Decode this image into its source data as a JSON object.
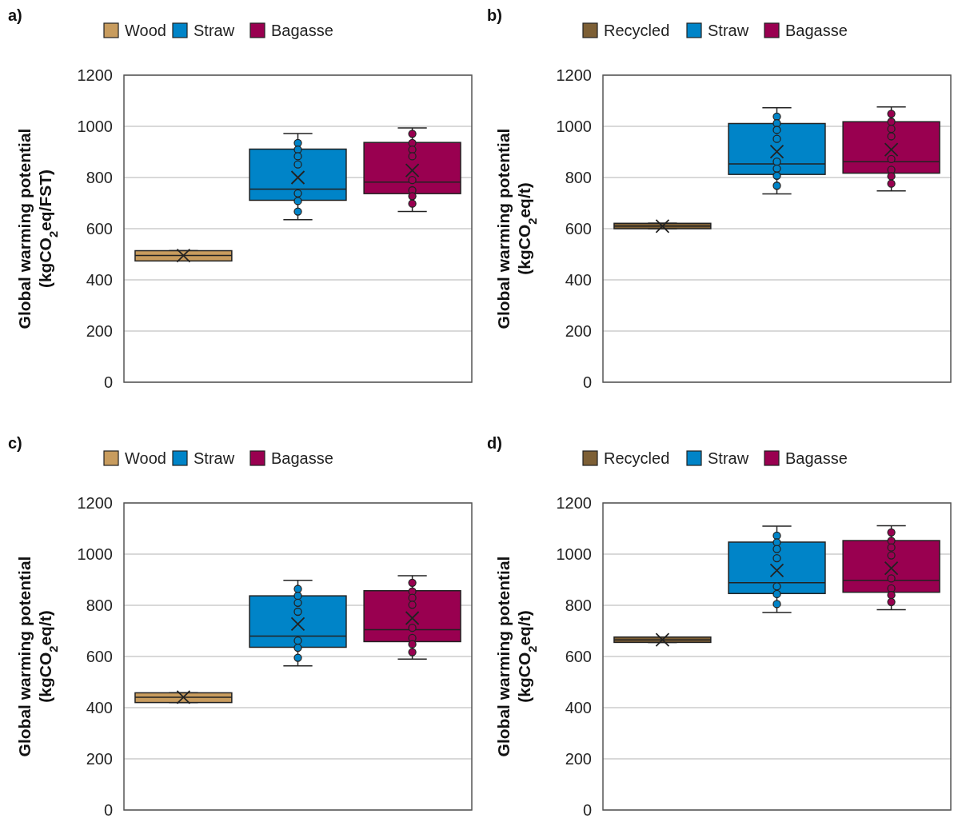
{
  "chart_data": [
    {
      "type": "box",
      "title": "a)",
      "ylabel": "Global warming potential\n(kgCO$_{2}$eq/FST)",
      "categories": [
        null,
        null,
        null
      ],
      "ylim": [
        0,
        1200
      ],
      "yticks": [
        0,
        200,
        400,
        600,
        800,
        1000,
        1200
      ],
      "grid": "y",
      "legend": "top",
      "tick_labels": "y",
      "series": [
        {
          "name": "Wood",
          "color": "#c89c5e",
          "boxes": [
            {
              "low": 474,
              "q1": 474,
              "median": 495,
              "q3": 514,
              "high": 514,
              "mean": 495
            },
            null,
            null
          ]
        },
        {
          "name": "Straw",
          "color": "#0084c8",
          "boxes": [
            null,
            {
              "low": 635,
              "q1": 711,
              "median": 755,
              "q3": 911,
              "high": 972,
              "mean": 800,
              "outliers": [
                935,
                909,
                883,
                851,
                738,
                708,
                667
              ]
            },
            null
          ]
        },
        {
          "name": "Bagasse",
          "color": "#990050",
          "boxes": [
            null,
            null,
            {
              "low": 667,
              "q1": 737,
              "median": 782,
              "q3": 937,
              "high": 994,
              "mean": 828,
              "outliers": [
                971,
                935,
                909,
                883,
                790,
                750,
                727,
                698
              ]
            }
          ]
        }
      ]
    },
    {
      "type": "box",
      "title": "b)",
      "ylabel": "Global warming potential\n(kgCO$_{2}$eq/t)",
      "categories": [
        null,
        null,
        null
      ],
      "ylim": [
        0,
        1200
      ],
      "yticks": [
        0,
        200,
        400,
        600,
        800,
        1000,
        1200
      ],
      "grid": "y",
      "legend": "top",
      "tick_labels": "y",
      "series": [
        {
          "name": "Recycled",
          "color": "#7d5f35",
          "boxes": [
            {
              "low": 600,
              "q1": 600,
              "median": 610,
              "q3": 621,
              "high": 621,
              "mean": 610
            },
            null,
            null
          ]
        },
        {
          "name": "Straw",
          "color": "#0084c8",
          "boxes": [
            null,
            {
              "low": 736,
              "q1": 812,
              "median": 853,
              "q3": 1011,
              "high": 1073,
              "mean": 901,
              "outliers": [
                1038,
                1012,
                986,
                951,
                862,
                835,
                807,
                768
              ]
            },
            null
          ]
        },
        {
          "name": "Bagasse",
          "color": "#990050",
          "boxes": [
            null,
            null,
            {
              "low": 748,
              "q1": 817,
              "median": 862,
              "q3": 1018,
              "high": 1076,
              "mean": 909,
              "outliers": [
                1049,
                1018,
                990,
                961,
                872,
                830,
                805,
                776
              ]
            }
          ]
        }
      ]
    },
    {
      "type": "box",
      "title": "c)",
      "ylabel": "Global warming potential\n(kgCO$_{2}$eq/t)",
      "categories": [
        null,
        null,
        null
      ],
      "ylim": [
        0,
        1200
      ],
      "yticks": [
        0,
        200,
        400,
        600,
        800,
        1000,
        1200
      ],
      "grid": "y",
      "legend": "top",
      "tick_labels": "y",
      "series": [
        {
          "name": "Wood",
          "color": "#c89c5e",
          "boxes": [
            {
              "low": 420,
              "q1": 420,
              "median": 441,
              "q3": 458,
              "high": 458,
              "mean": 441
            },
            null,
            null
          ]
        },
        {
          "name": "Straw",
          "color": "#0084c8",
          "boxes": [
            null,
            {
              "low": 563,
              "q1": 636,
              "median": 680,
              "q3": 837,
              "high": 898,
              "mean": 727,
              "outliers": [
                864,
                837,
                810,
                775,
                662,
                634,
                595
              ]
            },
            null
          ]
        },
        {
          "name": "Bagasse",
          "color": "#990050",
          "boxes": [
            null,
            null,
            {
              "low": 590,
              "q1": 658,
              "median": 705,
              "q3": 857,
              "high": 916,
              "mean": 750,
              "outliers": [
                888,
                854,
                829,
                802,
                712,
                672,
                648,
                617
              ]
            }
          ]
        }
      ]
    },
    {
      "type": "box",
      "title": "d)",
      "ylabel": "Global warming potential\n(kgCO$_{2}$eq/t)",
      "categories": [
        null,
        null,
        null
      ],
      "ylim": [
        0,
        1200
      ],
      "yticks": [
        0,
        200,
        400,
        600,
        800,
        1000,
        1200
      ],
      "grid": "y",
      "legend": "top",
      "tick_labels": "y",
      "series": [
        {
          "name": "Recycled",
          "color": "#7d5f35",
          "boxes": [
            {
              "low": 655,
              "q1": 655,
              "median": 665,
              "q3": 676,
              "high": 676,
              "mean": 665
            },
            null,
            null
          ]
        },
        {
          "name": "Straw",
          "color": "#0084c8",
          "boxes": [
            null,
            {
              "low": 772,
              "q1": 846,
              "median": 888,
              "q3": 1047,
              "high": 1109,
              "mean": 936,
              "outliers": [
                1072,
                1046,
                1020,
                984,
                874,
                844,
                805
              ]
            },
            null
          ]
        },
        {
          "name": "Bagasse",
          "color": "#990050",
          "boxes": [
            null,
            null,
            {
              "low": 783,
              "q1": 851,
              "median": 898,
              "q3": 1053,
              "high": 1111,
              "mean": 945,
              "outliers": [
                1085,
                1052,
                1026,
                995,
                905,
                866,
                840,
                813
              ]
            }
          ]
        }
      ]
    }
  ]
}
